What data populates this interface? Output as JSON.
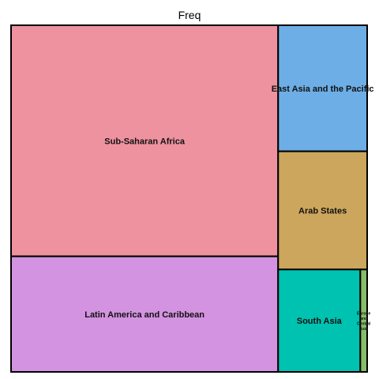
{
  "chart_data": {
    "type": "treemap",
    "title": "Freq",
    "items": [
      {
        "name": "Sub-Saharan Africa",
        "value": 44.0,
        "color": "#EE929F"
      },
      {
        "name": "Latin America and Caribbean",
        "value": 22.0,
        "color": "#D393E0"
      },
      {
        "name": "East Asia and the Pacific",
        "value": 8.0,
        "color": "#6DAEE6"
      },
      {
        "name": "Arab States",
        "value": 7.5,
        "color": "#CCA65C"
      },
      {
        "name": "South Asia",
        "value": 6.0,
        "color": "#00C2B0"
      },
      {
        "name": "Europe and Central Asia",
        "value": 0.5,
        "color": "#86BE6A"
      }
    ]
  }
}
